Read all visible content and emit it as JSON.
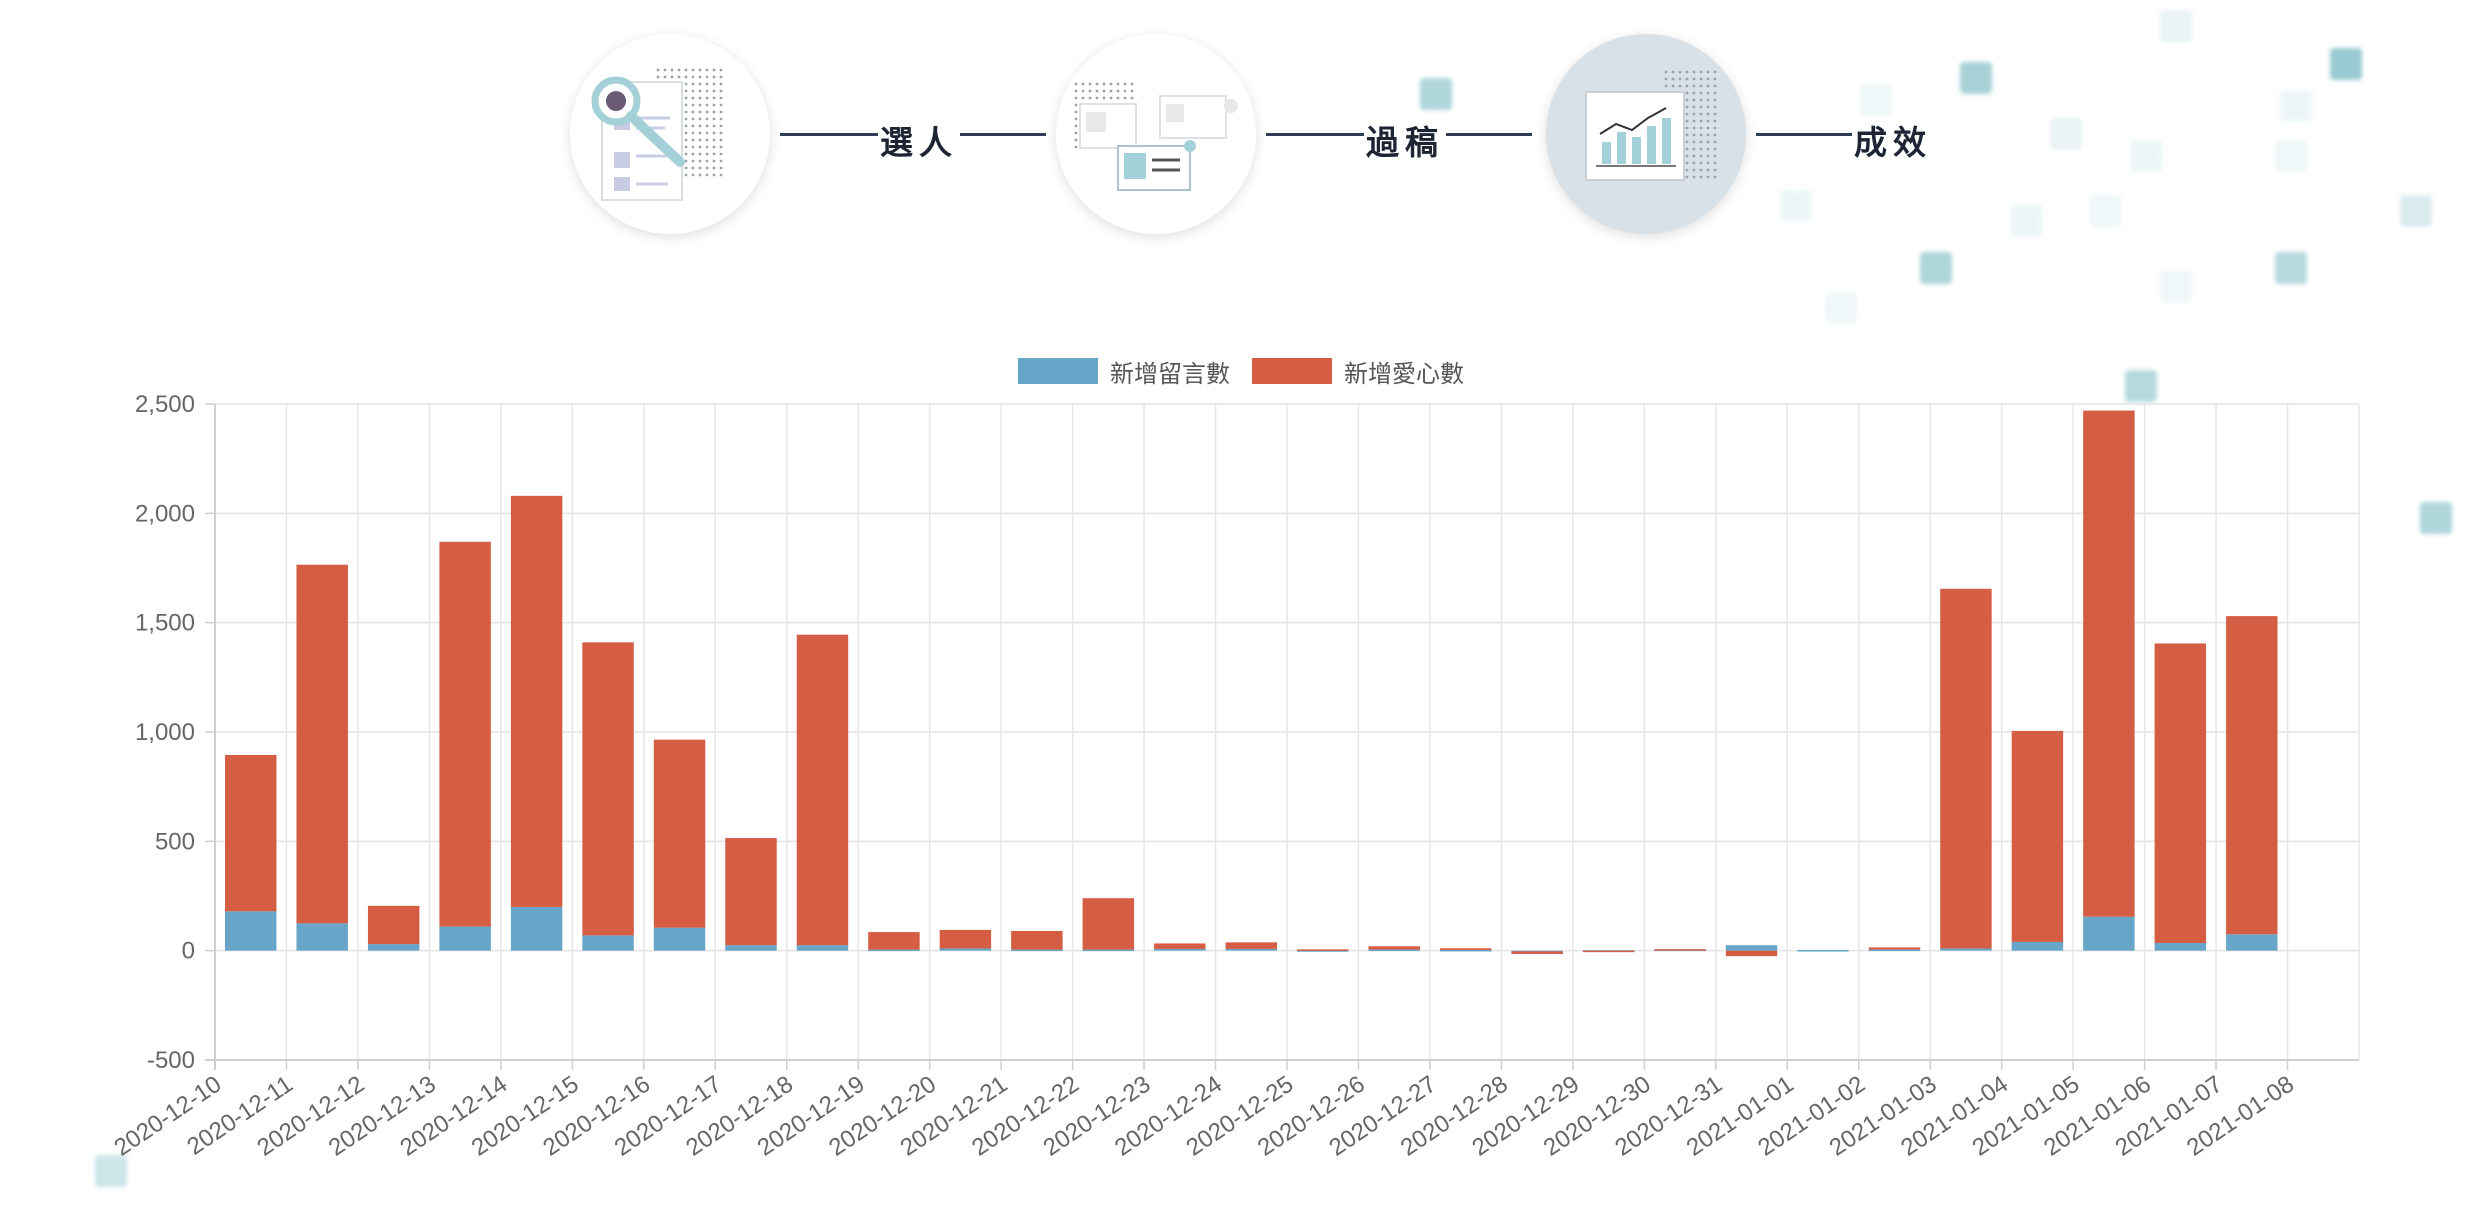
{
  "steps": {
    "labels": [
      "選人",
      "過稿",
      "成效"
    ],
    "icons": [
      "candidate-search-icon",
      "document-review-icon",
      "analytics-chart-icon"
    ],
    "active_index": 2,
    "line_color": "#2f3e55"
  },
  "chart_data": {
    "type": "bar",
    "stacked": true,
    "categories": [
      "2020-12-10",
      "2020-12-11",
      "2020-12-12",
      "2020-12-13",
      "2020-12-14",
      "2020-12-15",
      "2020-12-16",
      "2020-12-17",
      "2020-12-18",
      "2020-12-19",
      "2020-12-20",
      "2020-12-21",
      "2020-12-22",
      "2020-12-23",
      "2020-12-24",
      "2020-12-25",
      "2020-12-26",
      "2020-12-27",
      "2020-12-28",
      "2020-12-29",
      "2020-12-30",
      "2020-12-31",
      "2021-01-01",
      "2021-01-02",
      "2021-01-03",
      "2021-01-04",
      "2021-01-05",
      "2021-01-06",
      "2021-01-07",
      "2021-01-08"
    ],
    "series": [
      {
        "name": "新增留言數",
        "color": "#67a5c9",
        "values": [
          180,
          125,
          30,
          110,
          200,
          70,
          105,
          25,
          25,
          5,
          10,
          5,
          5,
          8,
          8,
          2,
          5,
          3,
          -3,
          2,
          5,
          25,
          3,
          5,
          10,
          40,
          155,
          35,
          75,
          0
        ]
      },
      {
        "name": "新增愛心數",
        "color": "#d55d44",
        "values": [
          715,
          1640,
          175,
          1760,
          1880,
          1340,
          860,
          490,
          1420,
          80,
          85,
          85,
          235,
          25,
          30,
          4,
          15,
          8,
          -12,
          -3,
          2,
          -25,
          0,
          10,
          1645,
          965,
          2315,
          1370,
          1455,
          0
        ]
      }
    ],
    "ylim": [
      -500,
      2500
    ],
    "yticks": [
      -500,
      0,
      500,
      1000,
      1500,
      2000,
      2500
    ],
    "ytick_labels": [
      "-500",
      "0",
      "500",
      "1,000",
      "1,500",
      "2,000",
      "2,500"
    ],
    "grid": true,
    "legend": "top-center",
    "title": "",
    "xlabel": "",
    "ylabel": ""
  }
}
